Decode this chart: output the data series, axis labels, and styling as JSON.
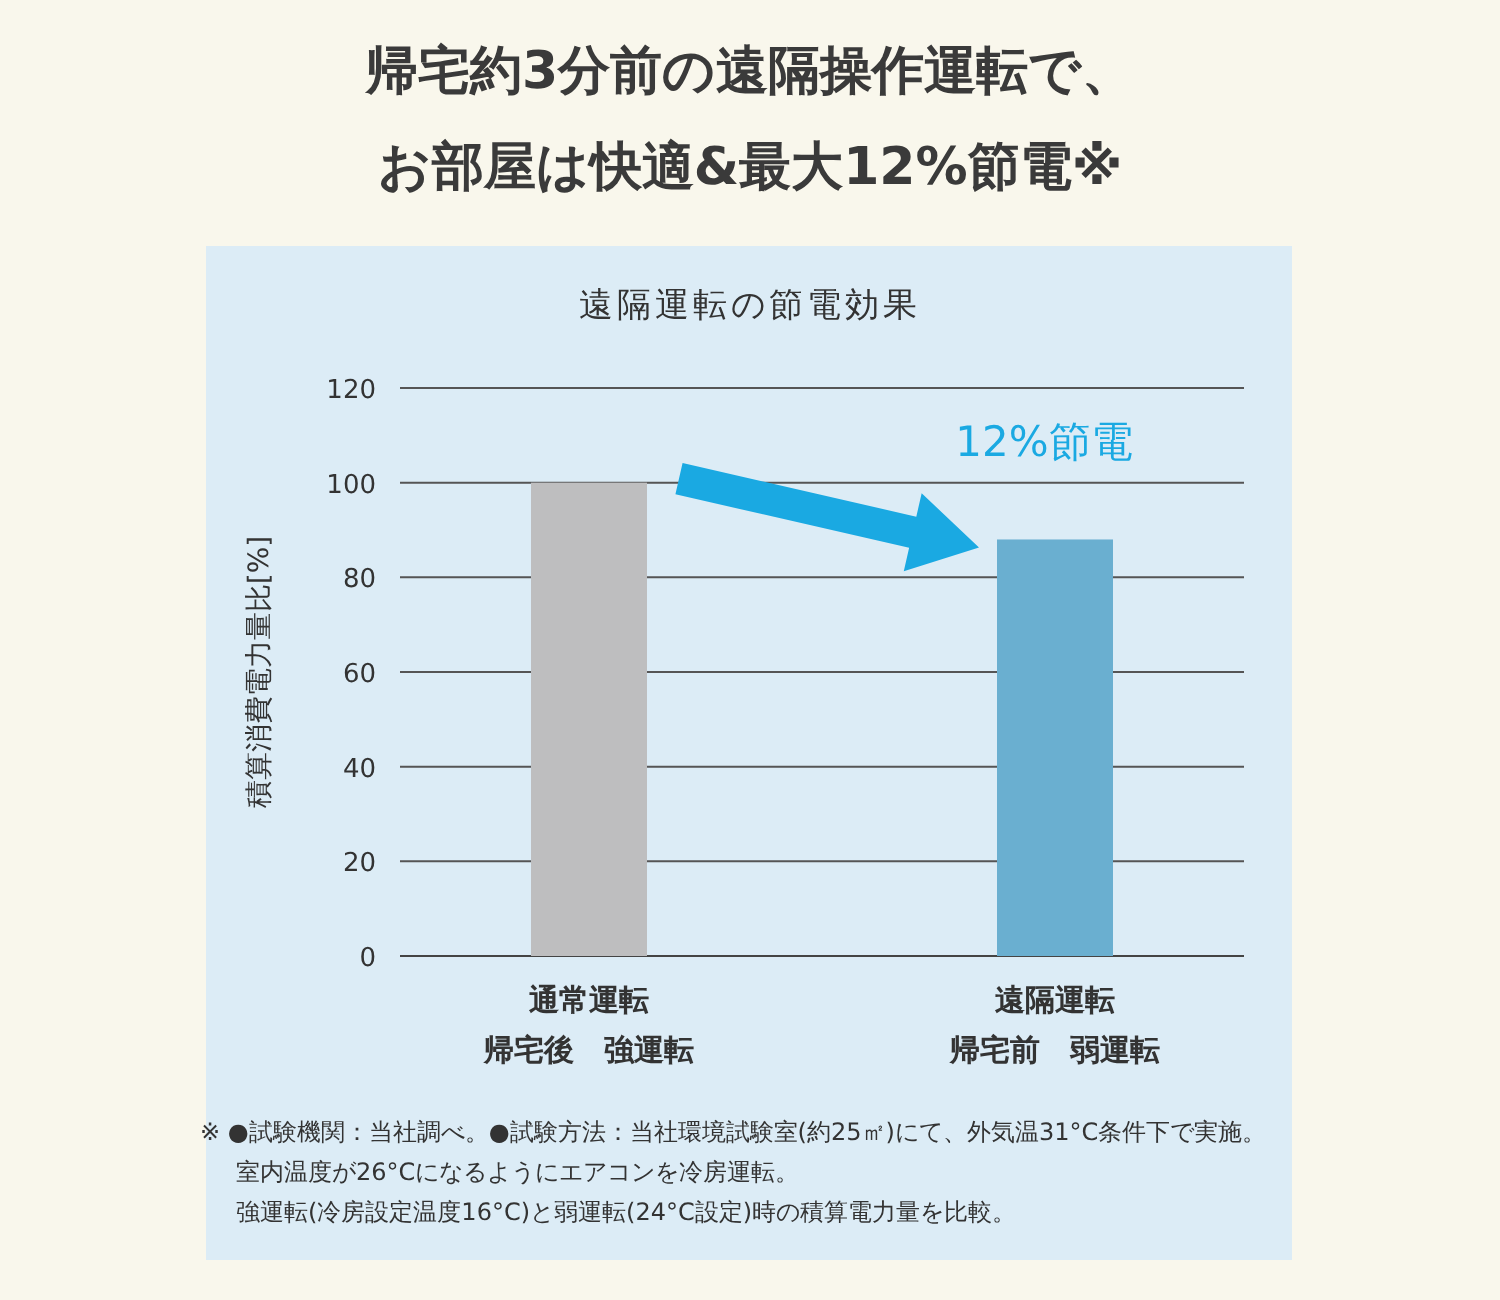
{
  "chart_data": {
    "type": "bar",
    "title": "帰宅約3分前の遠隔操作運転で、",
    "subtitle": "お部屋は快適&最大12%節電※",
    "ylabel": "積算消費電力量比[%]",
    "categories": [
      "通常運転",
      "遠隔運転"
    ],
    "values": [
      100,
      88
    ],
    "colors": [
      "#bebebf",
      "#6aafd0"
    ],
    "ylim": [
      0,
      120
    ],
    "yticks": [
      0,
      20,
      40,
      60,
      80,
      100,
      120
    ],
    "grid": "y",
    "annotations": [
      "遠隔運転の節電効果",
      "12%節電",
      "帰宅後　強運転",
      "帰宅前　弱運転",
      "※ ●試験機関：当社調べ。●試験方法：当社環境試験室(約25㎡)にて、外気温31°C条件下で実施。",
      "室内温度が26°Cになるようにエアコンを冷房運転。",
      "強運転(冷房設定温度16°C)と弱運転(24°C設定)時の積算電力量を比較。"
    ]
  }
}
